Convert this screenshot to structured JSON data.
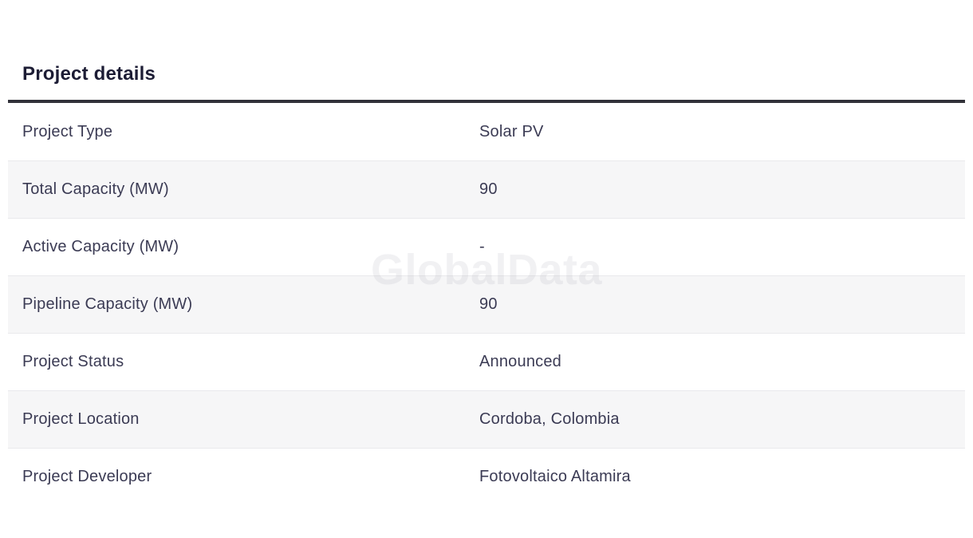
{
  "page": {
    "title": "Project details",
    "watermark": "GlobalData"
  },
  "colors": {
    "title_text": "#1d1d35",
    "row_text": "#3b3b54",
    "alt_row_bg": "#f6f6f7",
    "row_border": "#e9e9ec",
    "header_rule": "#32323a",
    "background": "#ffffff"
  },
  "table": {
    "rows": [
      {
        "label": "Project Type",
        "value": "Solar PV"
      },
      {
        "label": "Total Capacity (MW)",
        "value": "90"
      },
      {
        "label": "Active Capacity (MW)",
        "value": "-"
      },
      {
        "label": "Pipeline Capacity (MW)",
        "value": "90"
      },
      {
        "label": "Project Status",
        "value": "Announced"
      },
      {
        "label": "Project Location",
        "value": "Cordoba, Colombia"
      },
      {
        "label": "Project Developer",
        "value": "Fotovoltaico Altamira"
      }
    ]
  }
}
